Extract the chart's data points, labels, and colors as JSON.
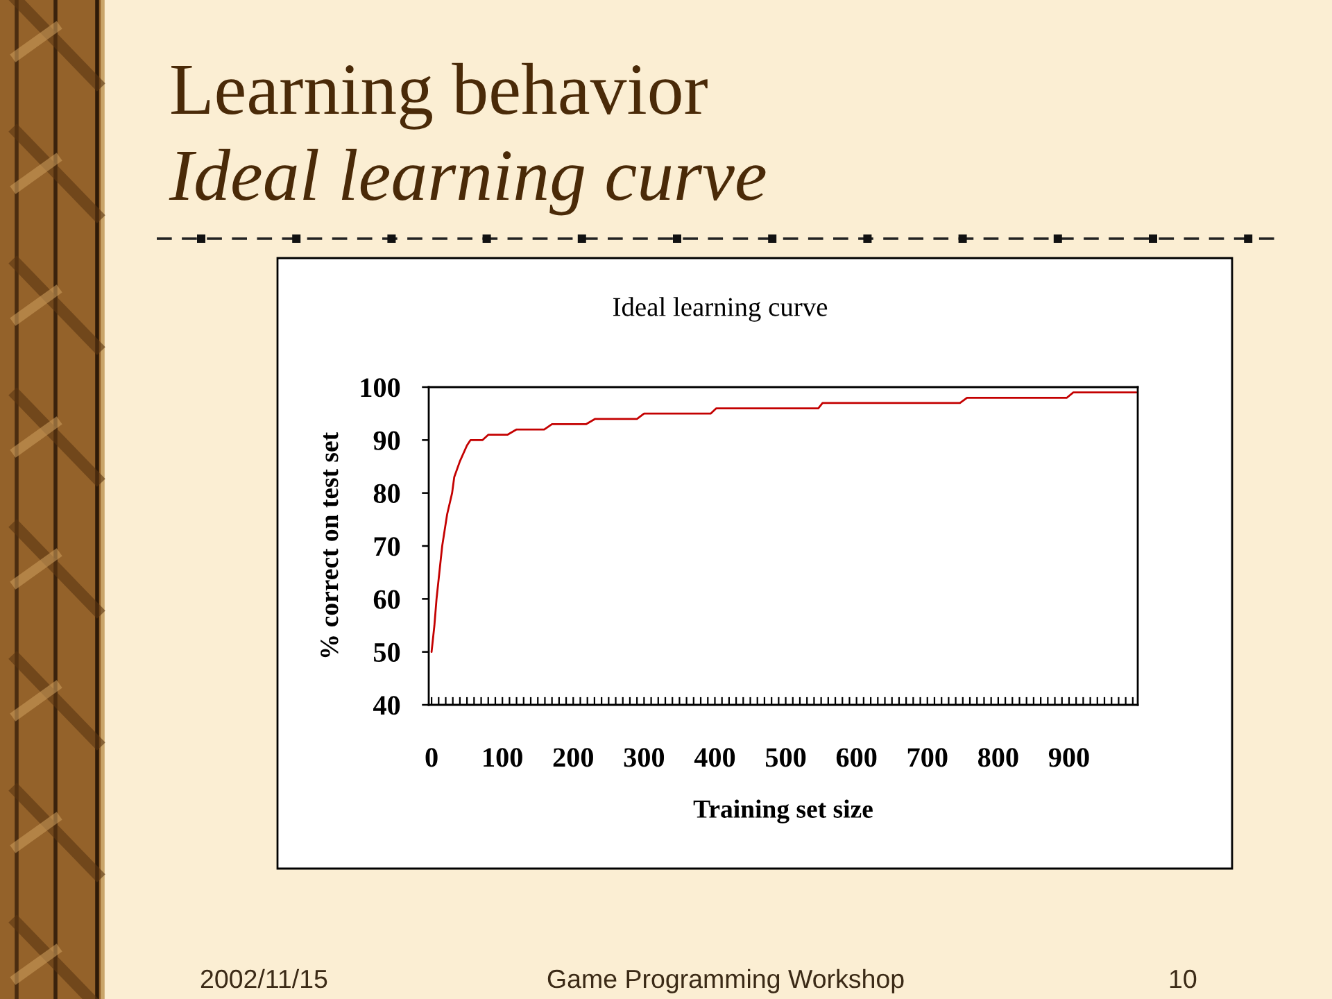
{
  "chart_data": {
    "type": "line",
    "title": "Ideal learning curve",
    "xlabel": "Training set size",
    "ylabel": "% correct on test set",
    "x": [
      0,
      4,
      7,
      15,
      22,
      29,
      32,
      40,
      50,
      55,
      72,
      80,
      107,
      120,
      159,
      170,
      218,
      231,
      290,
      300,
      394,
      402,
      546,
      552,
      746,
      756,
      897,
      906,
      995
    ],
    "values": [
      50,
      55,
      60,
      70,
      76,
      80,
      83,
      86,
      89,
      90,
      90,
      91,
      91,
      92,
      92,
      93,
      93,
      94,
      94,
      95,
      95,
      96,
      96,
      97,
      97,
      98,
      98,
      99,
      99
    ],
    "color": "#c40000",
    "xlim": [
      -4,
      997
    ],
    "ylim": [
      40,
      100
    ],
    "xticks": [
      0,
      {
        "value": 10,
        "label": null
      },
      {
        "value": 20,
        "label": null
      },
      {
        "value": 30,
        "label": null
      },
      {
        "value": 40,
        "label": null
      },
      {
        "value": 50,
        "label": null
      },
      {
        "value": 60,
        "label": null
      },
      {
        "value": 70,
        "label": null
      },
      {
        "value": 80,
        "label": null
      },
      {
        "value": 90,
        "label": null
      },
      100,
      {
        "value": 110,
        "label": null
      },
      {
        "value": 120,
        "label": null
      },
      {
        "value": 130,
        "label": null
      },
      {
        "value": 140,
        "label": null
      },
      {
        "value": 150,
        "label": null
      },
      {
        "value": 160,
        "label": null
      },
      {
        "value": 170,
        "label": null
      },
      {
        "value": 180,
        "label": null
      },
      {
        "value": 190,
        "label": null
      },
      200,
      {
        "value": 210,
        "label": null
      },
      {
        "value": 220,
        "label": null
      },
      {
        "value": 230,
        "label": null
      },
      {
        "value": 240,
        "label": null
      },
      {
        "value": 250,
        "label": null
      },
      {
        "value": 260,
        "label": null
      },
      {
        "value": 270,
        "label": null
      },
      {
        "value": 280,
        "label": null
      },
      {
        "value": 290,
        "label": null
      },
      300,
      {
        "value": 310,
        "label": null
      },
      {
        "value": 320,
        "label": null
      },
      {
        "value": 330,
        "label": null
      },
      {
        "value": 340,
        "label": null
      },
      {
        "value": 350,
        "label": null
      },
      {
        "value": 360,
        "label": null
      },
      {
        "value": 370,
        "label": null
      },
      {
        "value": 380,
        "label": null
      },
      {
        "value": 390,
        "label": null
      },
      400,
      {
        "value": 410,
        "label": null
      },
      {
        "value": 420,
        "label": null
      },
      {
        "value": 430,
        "label": null
      },
      {
        "value": 440,
        "label": null
      },
      {
        "value": 450,
        "label": null
      },
      {
        "value": 460,
        "label": null
      },
      {
        "value": 470,
        "label": null
      },
      {
        "value": 480,
        "label": null
      },
      {
        "value": 490,
        "label": null
      },
      500,
      {
        "value": 510,
        "label": null
      },
      {
        "value": 520,
        "label": null
      },
      {
        "value": 530,
        "label": null
      },
      {
        "value": 540,
        "label": null
      },
      {
        "value": 550,
        "label": null
      },
      {
        "value": 560,
        "label": null
      },
      {
        "value": 570,
        "label": null
      },
      {
        "value": 580,
        "label": null
      },
      {
        "value": 590,
        "label": null
      },
      600,
      {
        "value": 610,
        "label": null
      },
      {
        "value": 620,
        "label": null
      },
      {
        "value": 630,
        "label": null
      },
      {
        "value": 640,
        "label": null
      },
      {
        "value": 650,
        "label": null
      },
      {
        "value": 660,
        "label": null
      },
      {
        "value": 670,
        "label": null
      },
      {
        "value": 680,
        "label": null
      },
      {
        "value": 690,
        "label": null
      },
      700,
      {
        "value": 710,
        "label": null
      },
      {
        "value": 720,
        "label": null
      },
      {
        "value": 730,
        "label": null
      },
      {
        "value": 740,
        "label": null
      },
      {
        "value": 750,
        "label": null
      },
      {
        "value": 760,
        "label": null
      },
      {
        "value": 770,
        "label": null
      },
      {
        "value": 780,
        "label": null
      },
      {
        "value": 790,
        "label": null
      },
      800,
      {
        "value": 810,
        "label": null
      },
      {
        "value": 820,
        "label": null
      },
      {
        "value": 830,
        "label": null
      },
      {
        "value": 840,
        "label": null
      },
      {
        "value": 850,
        "label": null
      },
      {
        "value": 860,
        "label": null
      },
      {
        "value": 870,
        "label": null
      },
      {
        "value": 880,
        "label": null
      },
      {
        "value": 890,
        "label": null
      },
      900,
      {
        "value": 910,
        "label": null
      },
      {
        "value": 920,
        "label": null
      },
      {
        "value": 930,
        "label": null
      },
      {
        "value": 940,
        "label": null
      },
      {
        "value": 950,
        "label": null
      },
      {
        "value": 960,
        "label": null
      },
      {
        "value": 970,
        "label": null
      },
      {
        "value": 980,
        "label": null
      },
      {
        "value": 990,
        "label": null
      }
    ],
    "yticks": [
      40,
      50,
      60,
      70,
      80,
      90,
      100
    ],
    "annotations": [
      "Learning behavior",
      "Ideal learning curve",
      "2002/11/15",
      "Game Programming Workshop",
      "10"
    ]
  }
}
